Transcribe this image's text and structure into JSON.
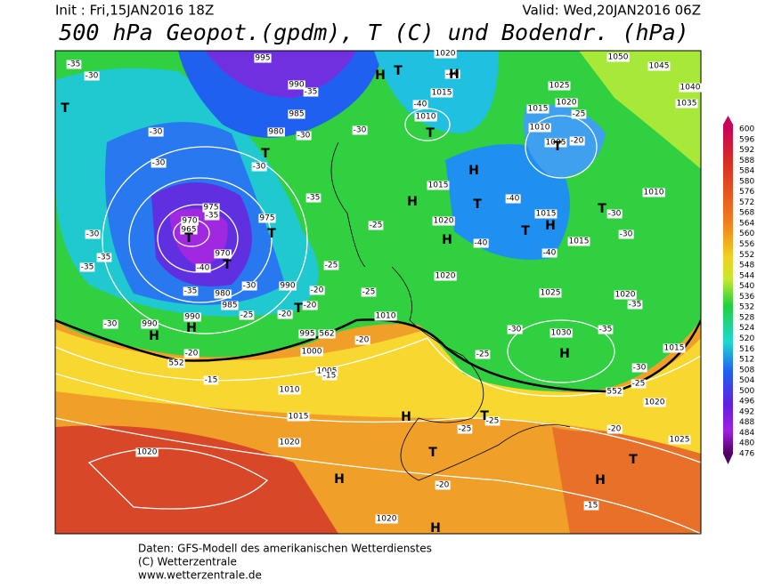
{
  "header": {
    "init": "Init : Fri,15JAN2016 18Z",
    "valid": "Valid: Wed,20JAN2016 06Z",
    "title": "500 hPa Geopot.(gpdm), T (C) und Bodendr. (hPa)"
  },
  "footer": {
    "lines": [
      "Daten: GFS-Modell des amerikanischen Wetterdienstes",
      "(C) Wetterzentrale",
      "www.wetterzentrale.de"
    ]
  },
  "colorbar": {
    "ticks": [
      600,
      596,
      592,
      588,
      584,
      580,
      576,
      572,
      568,
      564,
      560,
      556,
      552,
      548,
      544,
      540,
      536,
      532,
      528,
      524,
      520,
      516,
      512,
      508,
      504,
      500,
      496,
      492,
      488,
      484,
      480,
      476
    ]
  },
  "pressure_labels": [
    995,
    990,
    985,
    980,
    975,
    970,
    965,
    970,
    975,
    980,
    985,
    990,
    990,
    990,
    995,
    1000,
    1005,
    1010,
    1015,
    1020,
    1020,
    1020,
    1010,
    1020,
    1020,
    1015,
    1010,
    1015,
    1020,
    1025,
    1015,
    1020,
    1010,
    1005,
    1015,
    1015,
    1025,
    1020,
    1030,
    1015,
    1020,
    1025,
    1010,
    1050,
    1045,
    1040,
    1035
  ],
  "temperature_labels": [
    -35,
    -30,
    -30,
    -30,
    -35,
    -30,
    -30,
    -35,
    -40,
    -35,
    -30,
    -25,
    -20,
    -20,
    -20,
    -25,
    -20,
    -15,
    -20,
    -15,
    -30,
    -35,
    -35,
    -30,
    -35,
    -30,
    -25,
    -25,
    -40,
    -40,
    -25,
    -20,
    -40,
    -40,
    -40,
    -30,
    -30,
    -35,
    -30,
    -35,
    -30,
    -25,
    -25,
    -25,
    -20,
    -20,
    -15,
    -25
  ],
  "height_labels": [
    562,
    552,
    552
  ],
  "system_labels": [
    "T",
    "H",
    "T",
    "H",
    "T",
    "T",
    "H",
    "T",
    "H",
    "H",
    "T",
    "T",
    "T",
    "T",
    "H",
    "T",
    "T",
    "T",
    "H",
    "H",
    "H",
    "T",
    "T",
    "H",
    "H",
    "T",
    "H",
    "H"
  ]
}
